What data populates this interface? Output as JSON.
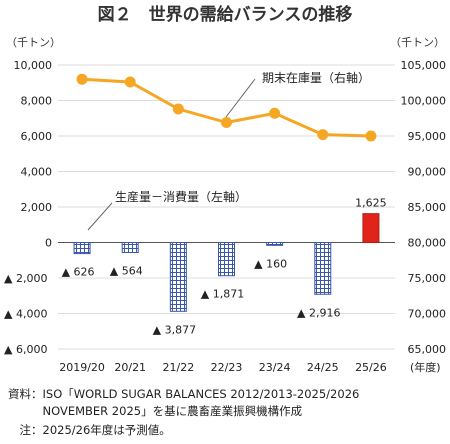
{
  "title": "図２　世界の需給バランスの推移",
  "left_unit": "（千トン）",
  "right_unit": "（千トン）",
  "x_unit": "(年度)",
  "colors": {
    "line": "#f5a623",
    "bar_hatch": "#3a57a8",
    "bar_forecast": "#e0241c"
  },
  "chart_data": {
    "type": "bar+line",
    "categories": [
      "2019/20",
      "20/21",
      "21/22",
      "22/23",
      "23/24",
      "24/25",
      "25/26"
    ],
    "bar_series": {
      "name": "生産量－消費量（左軸）",
      "values": [
        -626,
        -564,
        -3877,
        -1871,
        -160,
        -2916,
        1625
      ],
      "labels": [
        "▲ 626",
        "▲ 564",
        "▲ 3,877",
        "▲ 1,871",
        "▲ 160",
        "▲ 2,916",
        "1,625"
      ],
      "axis": "left"
    },
    "line_series": {
      "name": "期末在庫量（右軸）",
      "values": [
        103000,
        102600,
        98800,
        96900,
        98200,
        95200,
        95000
      ],
      "axis": "right"
    },
    "left_axis": {
      "range": [
        -6000,
        10000
      ],
      "ticks": [
        10000,
        8000,
        6000,
        4000,
        2000,
        0,
        -2000,
        -4000,
        -6000
      ],
      "tick_labels": [
        "10,000",
        "8,000",
        "6,000",
        "4,000",
        "2,000",
        "0",
        "▲ 2,000",
        "▲ 4,000",
        "▲ 6,000"
      ]
    },
    "right_axis": {
      "range": [
        65000,
        105000
      ],
      "ticks": [
        105000,
        100000,
        95000,
        90000,
        85000,
        80000,
        75000,
        70000,
        65000
      ],
      "tick_labels": [
        "105,000",
        "100,000",
        "95,000",
        "90,000",
        "85,000",
        "80,000",
        "75,000",
        "70,000",
        "65,000"
      ]
    },
    "grid": true
  },
  "notes": [
    "資料：ISO「WORLD SUGAR BALANCES 2012/2013-2025/2026",
    "　　　NOVEMBER 2025」を基に農畜産業振興機構作成",
    "　注：2025/26年度は予測値。"
  ]
}
